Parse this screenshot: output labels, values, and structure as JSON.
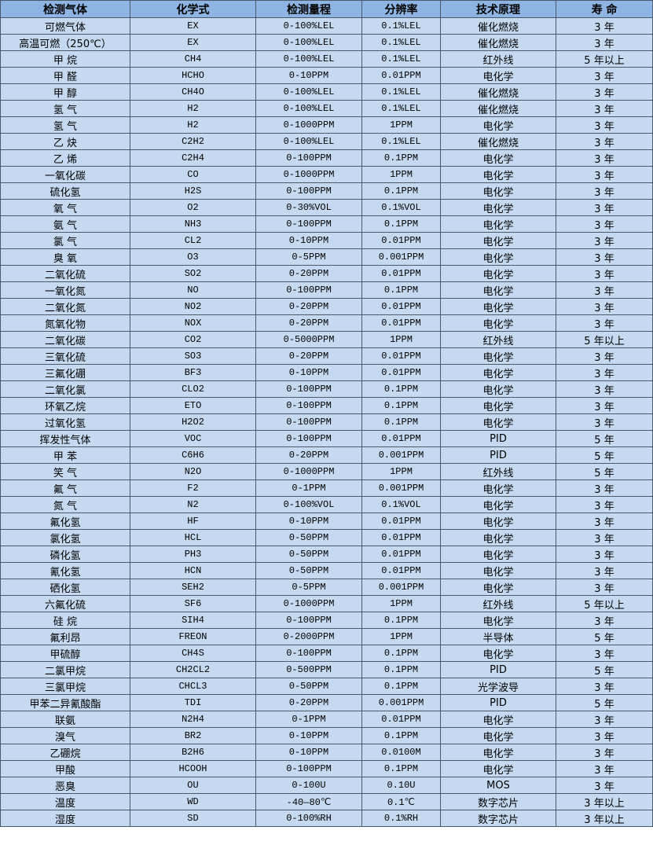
{
  "headers": [
    "检测气体",
    "化学式",
    "检测量程",
    "分辨率",
    "技术原理",
    "寿 命"
  ],
  "colors": {
    "header_bg": "#8db4e2",
    "row_bg": "#c5d9f1"
  },
  "rows": [
    [
      "可燃气体",
      "EX",
      "0-100%LEL",
      "0.1%LEL",
      "催化燃烧",
      "3 年"
    ],
    [
      "高温可燃（250℃）",
      "EX",
      "0-100%LEL",
      "0.1%LEL",
      "催化燃烧",
      "3 年"
    ],
    [
      "甲 烷",
      "CH4",
      "0-100%LEL",
      "0.1%LEL",
      "红外线",
      "5 年以上"
    ],
    [
      "甲 醛",
      "HCHO",
      "0-10PPM",
      "0.01PPM",
      "电化学",
      "3 年"
    ],
    [
      "甲 醇",
      "CH4O",
      "0-100%LEL",
      "0.1%LEL",
      "催化燃烧",
      "3 年"
    ],
    [
      "氢 气",
      "H2",
      "0-100%LEL",
      "0.1%LEL",
      "催化燃烧",
      "3 年"
    ],
    [
      "氢 气",
      "H2",
      "0-1000PPM",
      "1PPM",
      "电化学",
      "3 年"
    ],
    [
      "乙 炔",
      "C2H2",
      "0-100%LEL",
      "0.1%LEL",
      "催化燃烧",
      "3 年"
    ],
    [
      "乙 烯",
      "C2H4",
      "0-100PPM",
      "0.1PPM",
      "电化学",
      "3 年"
    ],
    [
      "一氧化碳",
      "CO",
      "0-1000PPM",
      "1PPM",
      "电化学",
      "3 年"
    ],
    [
      "硫化氢",
      "H2S",
      "0-100PPM",
      "0.1PPM",
      "电化学",
      "3 年"
    ],
    [
      "氧 气",
      "O2",
      "0-30%VOL",
      "0.1%VOL",
      "电化学",
      "3 年"
    ],
    [
      "氨 气",
      "NH3",
      "0-100PPM",
      "0.1PPM",
      "电化学",
      "3 年"
    ],
    [
      "氯 气",
      "CL2",
      "0-10PPM",
      "0.01PPM",
      "电化学",
      "3 年"
    ],
    [
      "臭 氧",
      "O3",
      "0-5PPM",
      "0.001PPM",
      "电化学",
      "3 年"
    ],
    [
      "二氧化硫",
      "SO2",
      "0-20PPM",
      "0.01PPM",
      "电化学",
      "3 年"
    ],
    [
      "一氧化氮",
      "NO",
      "0-100PPM",
      "0.1PPM",
      "电化学",
      "3 年"
    ],
    [
      "二氧化氮",
      "NO2",
      "0-20PPM",
      "0.01PPM",
      "电化学",
      "3 年"
    ],
    [
      "氮氧化物",
      "NOX",
      "0-20PPM",
      "0.01PPM",
      "电化学",
      "3 年"
    ],
    [
      "二氧化碳",
      "CO2",
      "0-5000PPM",
      "1PPM",
      "红外线",
      "5 年以上"
    ],
    [
      "三氧化硫",
      "SO3",
      "0-20PPM",
      "0.01PPM",
      "电化学",
      "3 年"
    ],
    [
      "三氟化硼",
      "BF3",
      "0-10PPM",
      "0.01PPM",
      "电化学",
      "3 年"
    ],
    [
      "二氧化氯",
      "CLO2",
      "0-100PPM",
      "0.1PPM",
      "电化学",
      "3 年"
    ],
    [
      "环氧乙烷",
      "ETO",
      "0-100PPM",
      "0.1PPM",
      "电化学",
      "3 年"
    ],
    [
      "过氧化氢",
      "H2O2",
      "0-100PPM",
      "0.1PPM",
      "电化学",
      "3 年"
    ],
    [
      "挥发性气体",
      "VOC",
      "0-100PPM",
      "0.01PPM",
      "PID",
      "5 年"
    ],
    [
      "甲 苯",
      "C6H6",
      "0-20PPM",
      "0.001PPM",
      "PID",
      "5 年"
    ],
    [
      "笑 气",
      "N2O",
      "0-1000PPM",
      "1PPM",
      "红外线",
      "5 年"
    ],
    [
      "氟 气",
      "F2",
      "0-1PPM",
      "0.001PPM",
      "电化学",
      "3 年"
    ],
    [
      "氮 气",
      "N2",
      "0-100%VOL",
      "0.1%VOL",
      "电化学",
      "3 年"
    ],
    [
      "氟化氢",
      "HF",
      "0-10PPM",
      "0.01PPM",
      "电化学",
      "3 年"
    ],
    [
      "氯化氢",
      "HCL",
      "0-50PPM",
      "0.01PPM",
      "电化学",
      "3 年"
    ],
    [
      "磷化氢",
      "PH3",
      "0-50PPM",
      "0.01PPM",
      "电化学",
      "3 年"
    ],
    [
      "氰化氢",
      "HCN",
      "0-50PPM",
      "0.01PPM",
      "电化学",
      "3 年"
    ],
    [
      "硒化氢",
      "SEH2",
      "0-5PPM",
      "0.001PPM",
      "电化学",
      "3 年"
    ],
    [
      "六氟化硫",
      "SF6",
      "0-1000PPM",
      "1PPM",
      "红外线",
      "5 年以上"
    ],
    [
      "硅 烷",
      "SIH4",
      "0-100PPM",
      "0.1PPM",
      "电化学",
      "3 年"
    ],
    [
      "氟利昂",
      "FREON",
      "0-2000PPM",
      "1PPM",
      "半导体",
      "5 年"
    ],
    [
      "甲硫醇",
      "CH4S",
      "0-100PPM",
      "0.1PPM",
      "电化学",
      "3 年"
    ],
    [
      "二氯甲烷",
      "CH2CL2",
      "0-500PPM",
      "0.1PPM",
      "PID",
      "5 年"
    ],
    [
      "三氯甲烷",
      "CHCL3",
      "0-50PPM",
      "0.1PPM",
      "光学波导",
      "3 年"
    ],
    [
      "甲苯二异氰酸酯",
      "TDI",
      "0-20PPM",
      "0.001PPM",
      "PID",
      "5 年"
    ],
    [
      "联氨",
      "N2H4",
      "0-1PPM",
      "0.01PPM",
      "电化学",
      "3 年"
    ],
    [
      "溴气",
      "BR2",
      "0-10PPM",
      "0.1PPM",
      "电化学",
      "3 年"
    ],
    [
      "乙硼烷",
      "B2H6",
      "0-10PPM",
      "0.0100M",
      "电化学",
      "3 年"
    ],
    [
      "甲酸",
      "HCOOH",
      "0-100PPM",
      "0.1PPM",
      "电化学",
      "3 年"
    ],
    [
      "恶臭",
      "OU",
      "0-100U",
      "0.10U",
      "MOS",
      "3 年"
    ],
    [
      "温度",
      "WD",
      "-40—80℃",
      "0.1℃",
      "数字芯片",
      "3 年以上"
    ],
    [
      "湿度",
      "SD",
      "0-100%RH",
      "0.1%RH",
      "数字芯片",
      "3 年以上"
    ]
  ]
}
